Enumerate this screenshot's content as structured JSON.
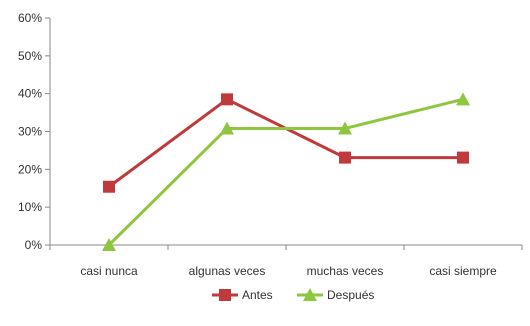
{
  "chart_data": {
    "type": "line",
    "title": "",
    "xlabel": "",
    "ylabel": "",
    "categories": [
      "casi nunca",
      "algunas veces",
      "muchas veces",
      "casi siempre"
    ],
    "ylim": [
      0,
      60
    ],
    "yticks": [
      0,
      10,
      20,
      30,
      40,
      50,
      60
    ],
    "ytick_labels": [
      "0%",
      "10%",
      "20%",
      "30%",
      "40%",
      "50%",
      "60%"
    ],
    "series": [
      {
        "name": "Antes",
        "values": [
          15.4,
          38.5,
          23.1,
          23.1
        ],
        "color": "#c0393b",
        "marker": "square"
      },
      {
        "name": "Después",
        "values": [
          0,
          30.8,
          30.8,
          38.5
        ],
        "color": "#8ec63f",
        "marker": "triangle"
      }
    ],
    "grid": false,
    "legend": "bottom"
  }
}
